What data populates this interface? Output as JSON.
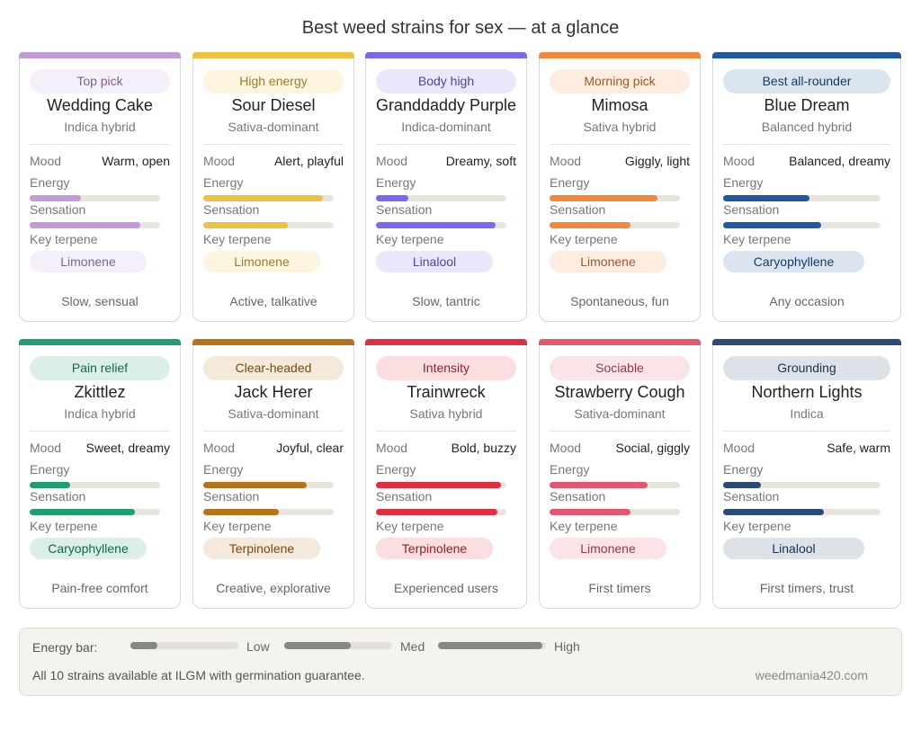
{
  "title": "Best weed strains for sex — at a glance",
  "cards": [
    {
      "tag": "Top pick",
      "name": "Wedding Cake",
      "kind": "Indica hybrid",
      "mood_label": "Mood",
      "mood": "Warm, open",
      "energy_label": "Energy",
      "energy": 0.39,
      "sensation_label": "Sensation",
      "sensation": 0.85,
      "terpene_label": "Key terpene",
      "terpene": "Limonene",
      "best_for": "Slow, sensual",
      "color": "#c39bd8"
    },
    {
      "tag": "High energy",
      "name": "Sour Diesel",
      "kind": "Sativa-dominant",
      "mood_label": "Mood",
      "mood": "Alert, playful",
      "energy_label": "Energy",
      "energy": 0.92,
      "sensation_label": "Sensation",
      "sensation": 0.65,
      "terpene_label": "Key terpene",
      "terpene": "Limonene",
      "best_for": "Active, talkative",
      "color": "#f0c040"
    },
    {
      "tag": "Body high",
      "name": "Granddaddy Purple",
      "kind": "Indica-dominant",
      "mood_label": "Mood",
      "mood": "Dreamy, soft",
      "energy_label": "Energy",
      "energy": 0.25,
      "sensation_label": "Sensation",
      "sensation": 0.92,
      "terpene_label": "Key terpene",
      "terpene": "Linalool",
      "best_for": "Slow, tantric",
      "color": "#7b68ee"
    },
    {
      "tag": "Morning pick",
      "name": "Mimosa",
      "kind": "Sativa hybrid",
      "mood_label": "Mood",
      "mood": "Giggly, light",
      "energy_label": "Energy",
      "energy": 0.83,
      "sensation_label": "Sensation",
      "sensation": 0.62,
      "terpene_label": "Key terpene",
      "terpene": "Limonene",
      "best_for": "Spontaneous, fun",
      "color": "#f5873a"
    },
    {
      "tag": "Best all-rounder",
      "name": "Blue Dream",
      "kind": "Balanced hybrid",
      "mood_label": "Mood",
      "mood": "Balanced, dreamy",
      "energy_label": "Energy",
      "energy": 0.55,
      "sensation_label": "Sensation",
      "sensation": 0.62,
      "terpene_label": "Key terpene",
      "terpene": "Caryophyllene",
      "best_for": "Any occasion",
      "color": "#1f5aa0"
    },
    {
      "tag": "Pain relief",
      "name": "Zkittlez",
      "kind": "Indica hybrid",
      "mood_label": "Mood",
      "mood": "Sweet, dreamy",
      "energy_label": "Energy",
      "energy": 0.31,
      "sensation_label": "Sensation",
      "sensation": 0.81,
      "terpene_label": "Key terpene",
      "terpene": "Caryophyllene",
      "best_for": "Pain-free comfort",
      "color": "#1e9e6e"
    },
    {
      "tag": "Clear-headed",
      "name": "Jack Herer",
      "kind": "Sativa-dominant",
      "mood_label": "Mood",
      "mood": "Joyful, clear",
      "energy_label": "Energy",
      "energy": 0.79,
      "sensation_label": "Sensation",
      "sensation": 0.58,
      "terpene_label": "Key terpene",
      "terpene": "Terpinolene",
      "best_for": "Creative, explorative",
      "color": "#b8731a"
    },
    {
      "tag": "Intensity",
      "name": "Trainwreck",
      "kind": "Sativa hybrid",
      "mood_label": "Mood",
      "mood": "Bold, buzzy",
      "energy_label": "Energy",
      "energy": 0.96,
      "sensation_label": "Sensation",
      "sensation": 0.93,
      "terpene_label": "Key terpene",
      "terpene": "Terpinolene",
      "best_for": "Experienced users",
      "color": "#e0303f"
    },
    {
      "tag": "Sociable",
      "name": "Strawberry Cough",
      "kind": "Sativa-dominant",
      "mood_label": "Mood",
      "mood": "Social, giggly",
      "energy_label": "Energy",
      "energy": 0.75,
      "sensation_label": "Sensation",
      "sensation": 0.62,
      "terpene_label": "Key terpene",
      "terpene": "Limonene",
      "best_for": "First timers",
      "color": "#e35870"
    },
    {
      "tag": "Grounding",
      "name": "Northern Lights",
      "kind": "Indica",
      "mood_label": "Mood",
      "mood": "Safe, warm",
      "energy_label": "Energy",
      "energy": 0.24,
      "sensation_label": "Sensation",
      "sensation": 0.64,
      "terpene_label": "Key terpene",
      "terpene": "Linalool",
      "best_for": "First timers, trust",
      "color": "#2a4a78"
    }
  ],
  "legend": {
    "label": "Energy bar:",
    "color": "#888780",
    "items": [
      {
        "label": "Low",
        "value": 0.25
      },
      {
        "label": "Med",
        "value": 0.62
      },
      {
        "label": "High",
        "value": 0.97
      }
    ]
  },
  "footer": {
    "note": "All 10 strains available at ILGM with germination guarantee.",
    "site": "weedmania420.com"
  }
}
